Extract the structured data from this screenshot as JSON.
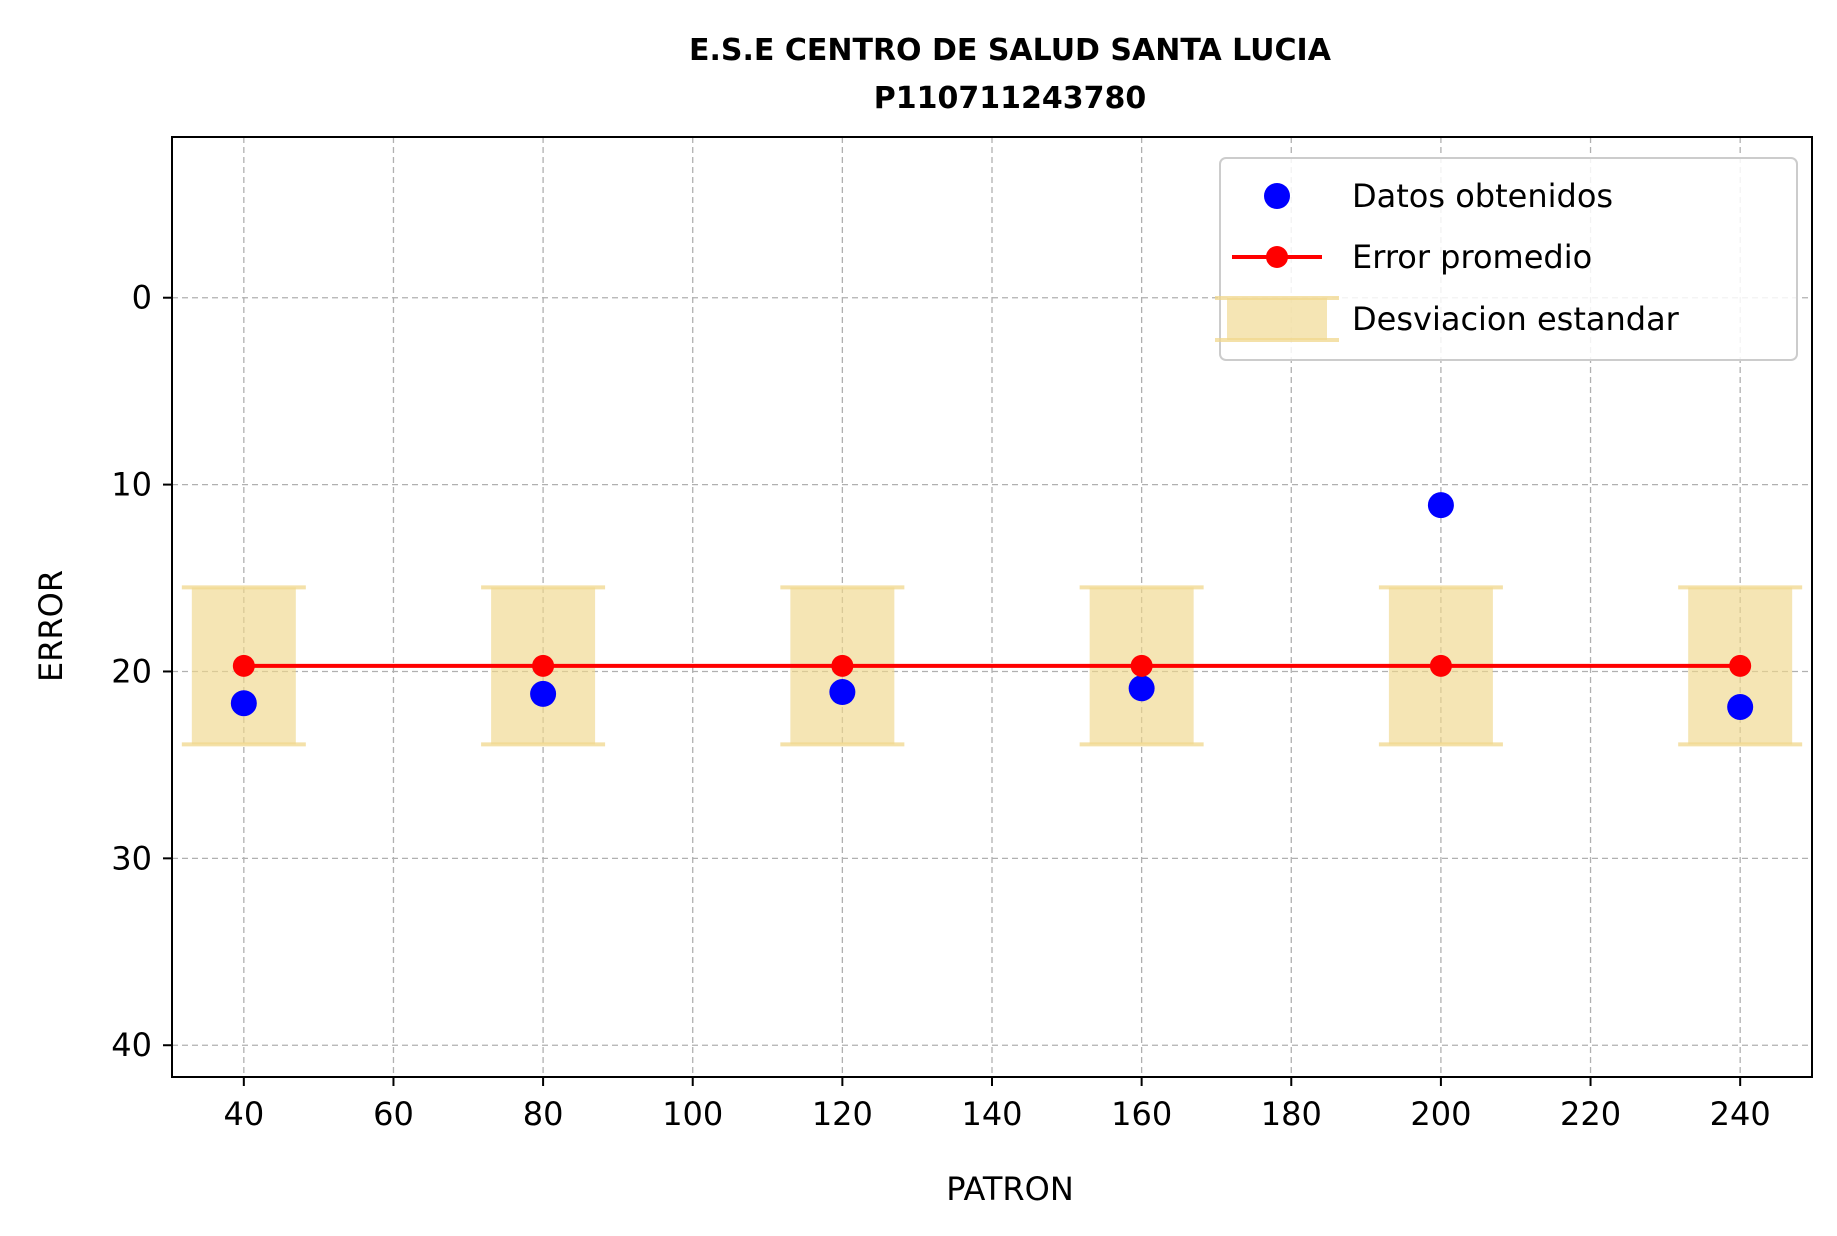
{
  "chart_data": {
    "type": "scatter",
    "title": "E.S.E CENTRO DE SALUD SANTA LUCIA",
    "subtitle": "P110711243780",
    "xlabel": "PATRON",
    "ylabel": "ERROR",
    "xlim": [
      30.4,
      249.6
    ],
    "ylim": [
      41.7,
      -8.6
    ],
    "y_inverted": true,
    "grid": true,
    "legend_position": "upper right",
    "xticks": [
      40,
      60,
      80,
      100,
      120,
      140,
      160,
      180,
      200,
      220,
      240
    ],
    "yticks": [
      0,
      10,
      20,
      30,
      40
    ],
    "xtick_labels": [
      "40",
      "60",
      "80",
      "100",
      "120",
      "140",
      "160",
      "180",
      "200",
      "220",
      "240"
    ],
    "ytick_labels": [
      "0",
      "10",
      "20",
      "30",
      "40"
    ],
    "x": [
      40,
      80,
      120,
      160,
      200,
      240
    ],
    "series": [
      {
        "name": "Datos obtenidos",
        "kind": "scatter",
        "color": "#0000ff",
        "values": [
          21.7,
          21.2,
          21.1,
          20.9,
          11.1,
          21.9
        ]
      },
      {
        "name": "Error promedio",
        "kind": "line-marker",
        "color": "#ff0000",
        "values": [
          19.7,
          19.7,
          19.7,
          19.7,
          19.7,
          19.7
        ]
      },
      {
        "name": "Desviacion estandar",
        "kind": "errorbar",
        "color": "#f0d78c",
        "values": [
          19.7,
          19.7,
          19.7,
          19.7,
          19.7,
          19.7
        ],
        "error": 4.2
      }
    ]
  }
}
